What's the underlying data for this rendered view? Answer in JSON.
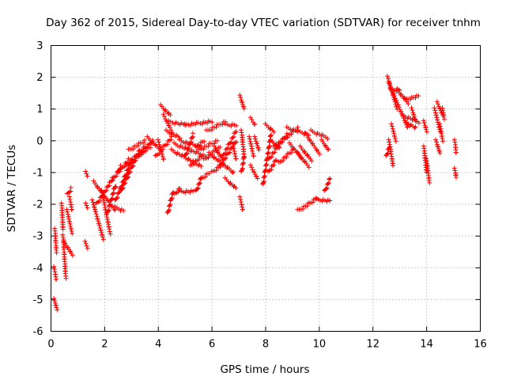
{
  "chart_data": {
    "type": "scatter",
    "title": "Day 362 of 2015, Sidereal Day-to-day VTEC variation (SDTVAR) for receiver tnhm",
    "xlabel": "GPS time / hours",
    "ylabel": "SDTVAR / TECUs",
    "xlim": [
      0,
      16
    ],
    "ylim": [
      -6,
      3
    ],
    "xticks": [
      0,
      2,
      4,
      6,
      8,
      10,
      12,
      14,
      16
    ],
    "yticks": [
      -6,
      -5,
      -4,
      -3,
      -2,
      -1,
      0,
      1,
      2,
      3
    ],
    "grid": true,
    "marker": "+",
    "color": "#ff0000",
    "series": [
      {
        "name": "SDTVAR",
        "segments": [
          {
            "x0": 0.15,
            "y0": -2.8,
            "x1": 0.2,
            "y1": -3.5
          },
          {
            "x0": 0.12,
            "y0": -4.0,
            "x1": 0.2,
            "y1": -4.4
          },
          {
            "x0": 0.12,
            "y0": -5.0,
            "x1": 0.22,
            "y1": -5.3
          },
          {
            "x0": 0.4,
            "y0": -2.0,
            "x1": 0.45,
            "y1": -2.8
          },
          {
            "x0": 0.45,
            "y0": -3.0,
            "x1": 0.55,
            "y1": -4.3
          },
          {
            "x0": 0.5,
            "y0": -3.2,
            "x1": 0.8,
            "y1": -3.6
          },
          {
            "x0": 0.6,
            "y0": -2.2,
            "x1": 0.78,
            "y1": -2.9
          },
          {
            "x0": 0.62,
            "y0": -1.7,
            "x1": 0.75,
            "y1": -1.5
          },
          {
            "x0": 0.7,
            "y0": -1.8,
            "x1": 0.78,
            "y1": -2.2
          },
          {
            "x0": 1.3,
            "y0": -1.0,
            "x1": 1.35,
            "y1": -1.1
          },
          {
            "x0": 1.3,
            "y0": -2.0,
            "x1": 1.35,
            "y1": -2.1
          },
          {
            "x0": 1.28,
            "y0": -3.2,
            "x1": 1.35,
            "y1": -3.35
          },
          {
            "x0": 1.55,
            "y0": -1.9,
            "x1": 1.95,
            "y1": -3.1
          },
          {
            "x0": 1.6,
            "y0": -1.3,
            "x1": 2.4,
            "y1": -2.2
          },
          {
            "x0": 1.7,
            "y0": -2.0,
            "x1": 2.3,
            "y1": -1.2
          },
          {
            "x0": 1.9,
            "y0": -1.6,
            "x1": 2.2,
            "y1": -2.9
          },
          {
            "x0": 2.1,
            "y0": -2.3,
            "x1": 2.4,
            "y1": -1.4
          },
          {
            "x0": 2.3,
            "y0": -1.2,
            "x1": 2.9,
            "y1": -0.6
          },
          {
            "x0": 2.4,
            "y0": -2.1,
            "x1": 2.7,
            "y1": -2.2
          },
          {
            "x0": 2.4,
            "y0": -1.9,
            "x1": 3.0,
            "y1": -0.6
          },
          {
            "x0": 2.5,
            "y0": -1.0,
            "x1": 2.6,
            "y1": -0.8
          },
          {
            "x0": 2.6,
            "y0": -1.6,
            "x1": 3.3,
            "y1": -0.3
          },
          {
            "x0": 2.8,
            "y0": -0.8,
            "x1": 3.5,
            "y1": -0.2
          },
          {
            "x0": 3.0,
            "y0": -0.7,
            "x1": 3.8,
            "y1": 0.0
          },
          {
            "x0": 3.2,
            "y0": -0.5,
            "x1": 3.7,
            "y1": -0.2
          },
          {
            "x0": 2.9,
            "y0": -0.3,
            "x1": 3.5,
            "y1": 0.0
          },
          {
            "x0": 3.6,
            "y0": 0.1,
            "x1": 4.1,
            "y1": -0.3
          },
          {
            "x0": 3.9,
            "y0": -0.5,
            "x1": 4.5,
            "y1": 0.1
          },
          {
            "x0": 4.0,
            "y0": 0.0,
            "x1": 4.2,
            "y1": -0.6
          },
          {
            "x0": 4.1,
            "y0": 1.1,
            "x1": 4.45,
            "y1": 0.8
          },
          {
            "x0": 4.2,
            "y0": 0.8,
            "x1": 4.5,
            "y1": 0.3
          },
          {
            "x0": 4.35,
            "y0": -2.3,
            "x1": 4.55,
            "y1": -1.6
          },
          {
            "x0": 4.4,
            "y0": 0.6,
            "x1": 5.0,
            "y1": 0.5
          },
          {
            "x0": 4.3,
            "y0": 0.3,
            "x1": 4.8,
            "y1": 0.1
          },
          {
            "x0": 4.5,
            "y0": -0.3,
            "x1": 5.6,
            "y1": -0.8
          },
          {
            "x0": 4.6,
            "y0": -0.1,
            "x1": 5.8,
            "y1": -0.5
          },
          {
            "x0": 4.8,
            "y0": 0.0,
            "x1": 5.6,
            "y1": -0.2
          },
          {
            "x0": 4.6,
            "y0": -1.7,
            "x1": 4.8,
            "y1": -1.5
          },
          {
            "x0": 4.8,
            "y0": -1.6,
            "x1": 5.3,
            "y1": -1.6
          },
          {
            "x0": 5.0,
            "y0": 0.5,
            "x1": 6.0,
            "y1": 0.6
          },
          {
            "x0": 5.0,
            "y0": -0.5,
            "x1": 5.3,
            "y1": 0.2
          },
          {
            "x0": 5.2,
            "y0": -0.8,
            "x1": 5.6,
            "y1": -0.5
          },
          {
            "x0": 5.4,
            "y0": -0.2,
            "x1": 5.7,
            "y1": 0.0
          },
          {
            "x0": 5.4,
            "y0": -1.6,
            "x1": 5.6,
            "y1": -1.2
          },
          {
            "x0": 5.5,
            "y0": -0.3,
            "x1": 6.2,
            "y1": 0.0
          },
          {
            "x0": 5.6,
            "y0": -1.2,
            "x1": 5.9,
            "y1": -1.0
          },
          {
            "x0": 5.7,
            "y0": -0.6,
            "x1": 6.3,
            "y1": -0.2
          },
          {
            "x0": 5.8,
            "y0": 0.3,
            "x1": 6.5,
            "y1": 0.6
          },
          {
            "x0": 5.9,
            "y0": -0.4,
            "x1": 6.8,
            "y1": -1.0
          },
          {
            "x0": 6.0,
            "y0": -1.0,
            "x1": 6.3,
            "y1": -0.8
          },
          {
            "x0": 6.1,
            "y0": -0.2,
            "x1": 6.4,
            "y1": -0.6
          },
          {
            "x0": 6.3,
            "y0": -0.8,
            "x1": 6.9,
            "y1": 0.0
          },
          {
            "x0": 6.4,
            "y0": -0.5,
            "x1": 6.9,
            "y1": 0.3
          },
          {
            "x0": 6.5,
            "y0": 0.5,
            "x1": 6.9,
            "y1": 0.5
          },
          {
            "x0": 6.5,
            "y0": -1.2,
            "x1": 6.9,
            "y1": -1.5
          },
          {
            "x0": 6.8,
            "y0": -0.2,
            "x1": 6.9,
            "y1": -0.6
          },
          {
            "x0": 7.05,
            "y0": 1.4,
            "x1": 7.2,
            "y1": 1.0
          },
          {
            "x0": 7.1,
            "y0": 0.3,
            "x1": 7.2,
            "y1": -0.5
          },
          {
            "x0": 7.05,
            "y0": -1.8,
            "x1": 7.15,
            "y1": -2.2
          },
          {
            "x0": 7.1,
            "y0": -1.0,
            "x1": 7.2,
            "y1": -0.5
          },
          {
            "x0": 7.45,
            "y0": 0.7,
            "x1": 7.6,
            "y1": 0.5
          },
          {
            "x0": 7.4,
            "y0": 0.1,
            "x1": 7.55,
            "y1": -0.5
          },
          {
            "x0": 7.45,
            "y0": -0.8,
            "x1": 7.7,
            "y1": -1.2
          },
          {
            "x0": 7.6,
            "y0": 0.1,
            "x1": 7.75,
            "y1": -0.3
          },
          {
            "x0": 7.9,
            "y0": -1.4,
            "x1": 8.2,
            "y1": 0.2
          },
          {
            "x0": 8.0,
            "y0": 0.5,
            "x1": 8.3,
            "y1": 0.3
          },
          {
            "x0": 8.1,
            "y0": -1.0,
            "x1": 8.4,
            "y1": -0.6
          },
          {
            "x0": 8.2,
            "y0": 0.0,
            "x1": 8.5,
            "y1": -0.2
          },
          {
            "x0": 8.1,
            "y0": -0.6,
            "x1": 8.8,
            "y1": 0.2
          },
          {
            "x0": 8.3,
            "y0": -0.2,
            "x1": 9.2,
            "y1": 0.4
          },
          {
            "x0": 8.5,
            "y0": -0.7,
            "x1": 9.0,
            "y1": -0.3
          },
          {
            "x0": 8.8,
            "y0": 0.4,
            "x1": 9.6,
            "y1": 0.2
          },
          {
            "x0": 8.9,
            "y0": -0.1,
            "x1": 9.3,
            "y1": -0.5
          },
          {
            "x0": 9.2,
            "y0": -0.4,
            "x1": 9.6,
            "y1": -0.8
          },
          {
            "x0": 9.3,
            "y0": -0.2,
            "x1": 9.7,
            "y1": -0.6
          },
          {
            "x0": 9.5,
            "y0": 0.2,
            "x1": 10.0,
            "y1": -0.4
          },
          {
            "x0": 9.7,
            "y0": 0.3,
            "x1": 10.3,
            "y1": 0.1
          },
          {
            "x0": 10.1,
            "y0": 0.0,
            "x1": 10.35,
            "y1": -0.3
          },
          {
            "x0": 9.2,
            "y0": -2.2,
            "x1": 9.6,
            "y1": -2.0
          },
          {
            "x0": 9.6,
            "y0": -2.0,
            "x1": 9.9,
            "y1": -1.8
          },
          {
            "x0": 9.9,
            "y0": -1.85,
            "x1": 10.4,
            "y1": -1.9
          },
          {
            "x0": 10.2,
            "y0": -1.6,
            "x1": 10.4,
            "y1": -1.2
          },
          {
            "x0": 12.55,
            "y0": 2.0,
            "x1": 12.9,
            "y1": 1.0
          },
          {
            "x0": 12.6,
            "y0": 1.8,
            "x1": 13.3,
            "y1": 0.4
          },
          {
            "x0": 12.65,
            "y0": 1.6,
            "x1": 13.0,
            "y1": 1.6
          },
          {
            "x0": 12.9,
            "y0": 1.6,
            "x1": 13.3,
            "y1": 1.2
          },
          {
            "x0": 13.1,
            "y0": 0.8,
            "x1": 13.7,
            "y1": 0.6
          },
          {
            "x0": 13.2,
            "y0": 1.3,
            "x1": 13.7,
            "y1": 1.4
          },
          {
            "x0": 13.2,
            "y0": 0.6,
            "x1": 13.6,
            "y1": 0.4
          },
          {
            "x0": 12.6,
            "y0": 0.0,
            "x1": 12.75,
            "y1": -0.8
          },
          {
            "x0": 12.7,
            "y0": 0.5,
            "x1": 12.85,
            "y1": 0.0
          },
          {
            "x0": 12.5,
            "y0": -0.5,
            "x1": 12.6,
            "y1": -0.2
          },
          {
            "x0": 13.45,
            "y0": 1.0,
            "x1": 13.6,
            "y1": 0.6
          },
          {
            "x0": 13.9,
            "y0": 0.6,
            "x1": 14.0,
            "y1": 0.3
          },
          {
            "x0": 13.9,
            "y0": -0.2,
            "x1": 14.0,
            "y1": -1.0
          },
          {
            "x0": 14.0,
            "y0": -0.6,
            "x1": 14.1,
            "y1": -1.3
          },
          {
            "x0": 14.3,
            "y0": 1.0,
            "x1": 14.5,
            "y1": 0.3
          },
          {
            "x0": 14.4,
            "y0": 1.2,
            "x1": 14.6,
            "y1": 0.8
          },
          {
            "x0": 14.35,
            "y0": 0.0,
            "x1": 14.5,
            "y1": -0.4
          },
          {
            "x0": 14.5,
            "y0": 0.5,
            "x1": 14.6,
            "y1": 0.0
          },
          {
            "x0": 14.6,
            "y0": 1.0,
            "x1": 14.65,
            "y1": 0.7
          },
          {
            "x0": 15.05,
            "y0": 0.0,
            "x1": 15.1,
            "y1": -0.4
          },
          {
            "x0": 15.05,
            "y0": -0.9,
            "x1": 15.1,
            "y1": -1.15
          }
        ]
      }
    ]
  }
}
